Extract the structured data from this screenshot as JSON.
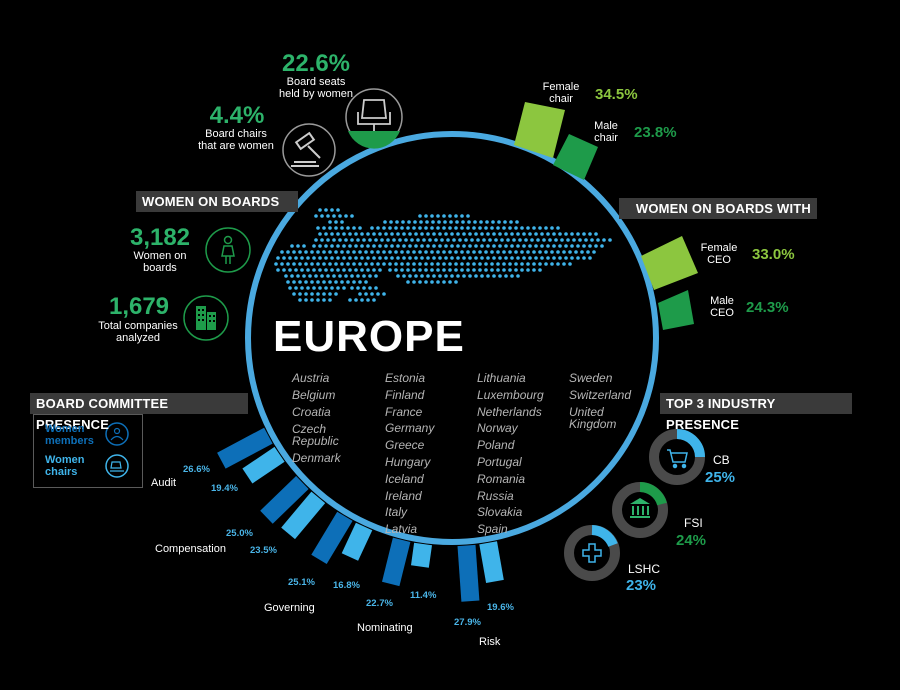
{
  "region_title": "EUROPE",
  "headers": {
    "women_on_boards": "WOMEN ON BOARDS",
    "women_on_boards_with": "WOMEN ON BOARDS WITH",
    "board_committee_presence": "BOARD COMMITTEE PRESENCE",
    "top3_industry": "TOP 3 INDUSTRY PRESENCE"
  },
  "stats": {
    "seats_value": "22.6%",
    "seats_label_1": "Board seats",
    "seats_label_2": "held by women",
    "chairs_value": "4.4%",
    "chairs_label_1": "Board chairs",
    "chairs_label_2": "that are women",
    "women_value": "3,182",
    "women_label_1": "Women on",
    "women_label_2": "boards",
    "companies_value": "1,679",
    "companies_label_1": "Total companies",
    "companies_label_2": "analyzed"
  },
  "chair_split": {
    "female_label_1": "Female",
    "female_label_2": "chair",
    "female_value": "34.5%",
    "male_label_1": "Male",
    "male_label_2": "chair",
    "male_value": "23.8%"
  },
  "ceo_split": {
    "female_label_1": "Female",
    "female_label_2": "CEO",
    "female_value": "33.0%",
    "male_label_1": "Male",
    "male_label_2": "CEO",
    "male_value": "24.3%"
  },
  "countries": {
    "col1": [
      "Austria",
      "Belgium",
      "Croatia",
      "Czech",
      "Republic",
      "Denmark"
    ],
    "col2": [
      "Estonia",
      "Finland",
      "France",
      "Germany",
      "Greece",
      "Hungary",
      "Iceland",
      "Ireland",
      "Italy",
      "Latvia"
    ],
    "col3": [
      "Lithuania",
      "Luxembourg",
      "Netherlands",
      "Norway",
      "Poland",
      "Portugal",
      "Romania",
      "Russia",
      "Slovakia",
      "Spain"
    ],
    "col4": [
      "Sweden",
      "Switzerland",
      "United",
      "Kingdom"
    ]
  },
  "legend": {
    "members_1": "Women",
    "members_2": "members",
    "chairs_1": "Women",
    "chairs_2": "chairs"
  },
  "committees": [
    {
      "name": "Audit",
      "members": "26.6%",
      "chairs": "19.4%"
    },
    {
      "name": "Compensation",
      "members": "25.0%",
      "chairs": "23.5%"
    },
    {
      "name": "Governing",
      "members": "25.1%",
      "chairs": "16.8%"
    },
    {
      "name": "Nominating",
      "members": "22.7%",
      "chairs": "11.4%"
    },
    {
      "name": "Risk",
      "members": "27.9%",
      "chairs": "19.6%"
    }
  ],
  "industries": [
    {
      "name": "CB",
      "value": "25%"
    },
    {
      "name": "FSI",
      "value": "24%"
    },
    {
      "name": "LSHC",
      "value": "23%"
    }
  ],
  "colors": {
    "lime": "#8cc63f",
    "green": "#1e9b4a",
    "dark_blue": "#0d6fb8",
    "light_blue": "#3fb4ea",
    "ring": "#4aa9e0",
    "header_bg": "#3a3a3a"
  }
}
